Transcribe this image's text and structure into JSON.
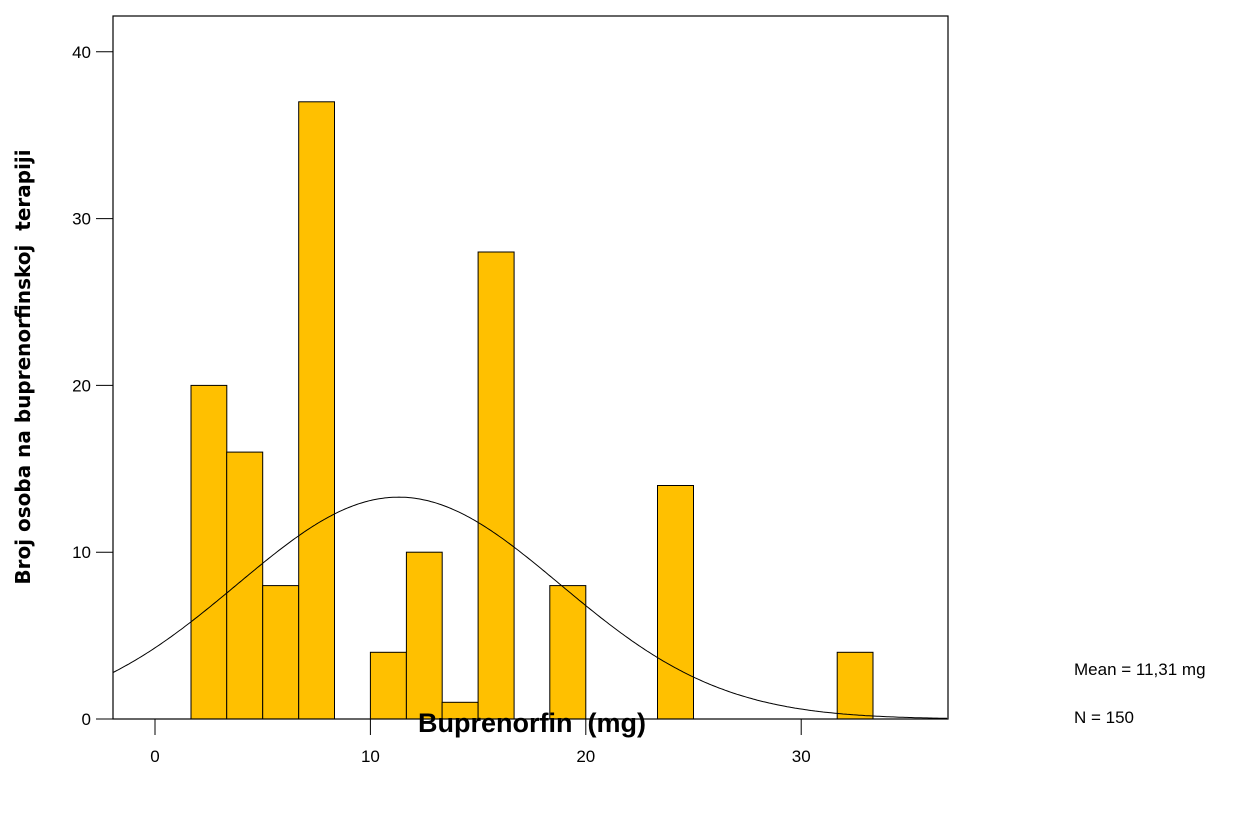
{
  "chart_data": {
    "type": "bar",
    "subtype": "histogram",
    "xlabel": "Buprenorfin  (mg)",
    "ylabel": "Broj osoba na buprenorfinskoj  terapiji",
    "xlim": [
      -2,
      36.7
    ],
    "ylim": [
      0,
      42.2
    ],
    "x_ticks": [
      0,
      10,
      20,
      30
    ],
    "y_ticks": [
      0,
      10,
      20,
      30,
      40
    ],
    "x_tick_labels": [
      "0",
      "10",
      "20",
      "30"
    ],
    "y_tick_labels": [
      "0",
      "10",
      "20",
      "30",
      "40"
    ],
    "bins": [
      {
        "start": 1.67,
        "end": 3.33,
        "count": 20
      },
      {
        "start": 3.33,
        "end": 5.0,
        "count": 16
      },
      {
        "start": 5.0,
        "end": 6.67,
        "count": 8
      },
      {
        "start": 6.67,
        "end": 8.33,
        "count": 37
      },
      {
        "start": 10.0,
        "end": 11.67,
        "count": 4
      },
      {
        "start": 11.67,
        "end": 13.33,
        "count": 10
      },
      {
        "start": 13.33,
        "end": 15.0,
        "count": 1
      },
      {
        "start": 15.0,
        "end": 16.67,
        "count": 28
      },
      {
        "start": 18.33,
        "end": 20.0,
        "count": 8
      },
      {
        "start": 23.33,
        "end": 25.0,
        "count": 14
      },
      {
        "start": 31.67,
        "end": 33.33,
        "count": 4
      }
    ],
    "bar_color": "#ffc000",
    "normal_curve": {
      "mean": 11.31,
      "std": 7.5,
      "n": 150,
      "bin_width": 1.667
    },
    "stats": {
      "mean_label": "Mean = 11,31 mg",
      "n_label": "N = 150"
    },
    "grid": false,
    "legend": "none"
  }
}
